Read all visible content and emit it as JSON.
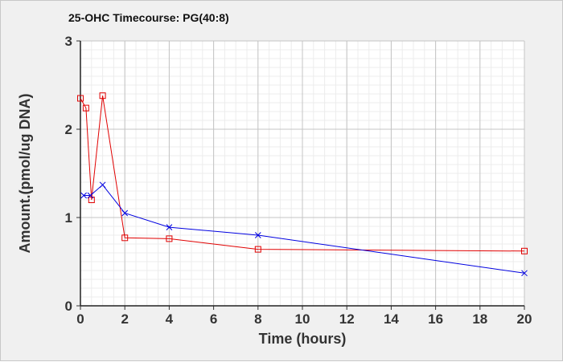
{
  "chart_data": {
    "type": "line",
    "title": "25-OHC Timecourse: PG(40:8)",
    "xlabel": "Time (hours)",
    "ylabel": "Amount.(pmol/ug DNA)",
    "xlim": [
      0,
      20
    ],
    "ylim": [
      0,
      3
    ],
    "xticks": [
      0,
      2,
      4,
      6,
      8,
      10,
      12,
      14,
      16,
      18,
      20
    ],
    "yticks": [
      0,
      1,
      2,
      3
    ],
    "grid": true,
    "series": [
      {
        "name": "red",
        "color": "#e00000",
        "marker": "square",
        "x": [
          0,
          0.25,
          0.5,
          1,
          2,
          4,
          8,
          20
        ],
        "y": [
          2.35,
          2.24,
          1.2,
          2.38,
          0.77,
          0.76,
          0.64,
          0.62
        ]
      },
      {
        "name": "blue",
        "color": "#0000e0",
        "marker": "x",
        "x": [
          0.15,
          0.45,
          1,
          2,
          4,
          8,
          20
        ],
        "y": [
          1.25,
          1.25,
          1.37,
          1.05,
          0.89,
          0.8,
          0.37
        ]
      }
    ]
  }
}
